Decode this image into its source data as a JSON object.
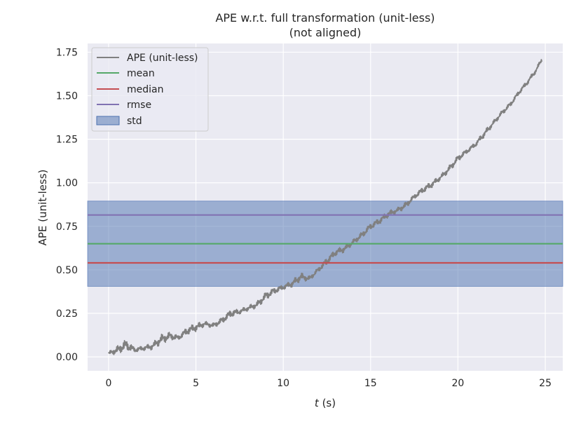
{
  "chart_data": {
    "type": "line",
    "title": "APE w.r.t. full transformation (unit-less)",
    "subtitle": "(not aligned)",
    "xlabel_italic": "t",
    "xlabel_unit": " (s)",
    "ylabel": "APE (unit-less)",
    "xlim": [
      -1.2,
      26
    ],
    "ylim": [
      -0.08,
      1.8
    ],
    "x_ticks": [
      0,
      5,
      10,
      15,
      20,
      25
    ],
    "x_tick_labels": [
      "0",
      "5",
      "10",
      "15",
      "20",
      "25"
    ],
    "y_ticks": [
      0.0,
      0.25,
      0.5,
      0.75,
      1.0,
      1.25,
      1.5,
      1.75
    ],
    "y_tick_labels": [
      "0.00",
      "0.25",
      "0.50",
      "0.75",
      "1.00",
      "1.25",
      "1.50",
      "1.75"
    ],
    "grid": true,
    "legend_placement": "upper-left",
    "series": [
      {
        "name": "APE (unit-less)",
        "color": "#808080",
        "x": [
          0,
          0.5,
          1,
          1.5,
          2,
          2.5,
          3,
          3.5,
          4,
          4.5,
          5,
          5.5,
          6,
          6.5,
          7,
          7.5,
          8,
          8.5,
          9,
          9.5,
          10,
          10.5,
          11,
          11.5,
          12,
          12.5,
          13,
          13.5,
          14,
          14.5,
          15,
          15.5,
          16,
          16.5,
          17,
          17.5,
          18,
          18.5,
          19,
          19.5,
          20,
          20.5,
          21,
          21.5,
          22,
          22.5,
          23,
          23.5,
          24,
          24.5,
          24.8
        ],
        "y": [
          0.02,
          0.04,
          0.07,
          0.04,
          0.05,
          0.06,
          0.1,
          0.12,
          0.11,
          0.15,
          0.17,
          0.19,
          0.18,
          0.21,
          0.25,
          0.26,
          0.28,
          0.3,
          0.35,
          0.38,
          0.4,
          0.42,
          0.46,
          0.45,
          0.5,
          0.55,
          0.6,
          0.62,
          0.66,
          0.7,
          0.75,
          0.78,
          0.82,
          0.84,
          0.87,
          0.92,
          0.96,
          0.99,
          1.03,
          1.08,
          1.14,
          1.18,
          1.22,
          1.28,
          1.34,
          1.4,
          1.45,
          1.52,
          1.58,
          1.65,
          1.71
        ],
        "noise": [
          0.02,
          0.05,
          0.07,
          0.03,
          0.03,
          0.04,
          0.06,
          0.05,
          0.03,
          0.05,
          0.05,
          0.03,
          0.03,
          0.04,
          0.05,
          0.03,
          0.03,
          0.04,
          0.05,
          0.04,
          0.03,
          0.04,
          0.05,
          0.03,
          0.03,
          0.05,
          0.04,
          0.04,
          0.03,
          0.04,
          0.04,
          0.04,
          0.04,
          0.03,
          0.04,
          0.03,
          0.04,
          0.04,
          0.03,
          0.04,
          0.04,
          0.03,
          0.03,
          0.04,
          0.03,
          0.03,
          0.03,
          0.03,
          0.03,
          0.03,
          0.03
        ]
      }
    ],
    "hlines": [
      {
        "name": "mean",
        "value": 0.65,
        "color": "#55a868"
      },
      {
        "name": "median",
        "value": 0.54,
        "color": "#c44e52"
      },
      {
        "name": "rmse",
        "value": 0.815,
        "color": "#8172b2"
      }
    ],
    "band": {
      "name": "std",
      "from": 0.405,
      "to": 0.895,
      "color": "#4c72b0"
    }
  }
}
